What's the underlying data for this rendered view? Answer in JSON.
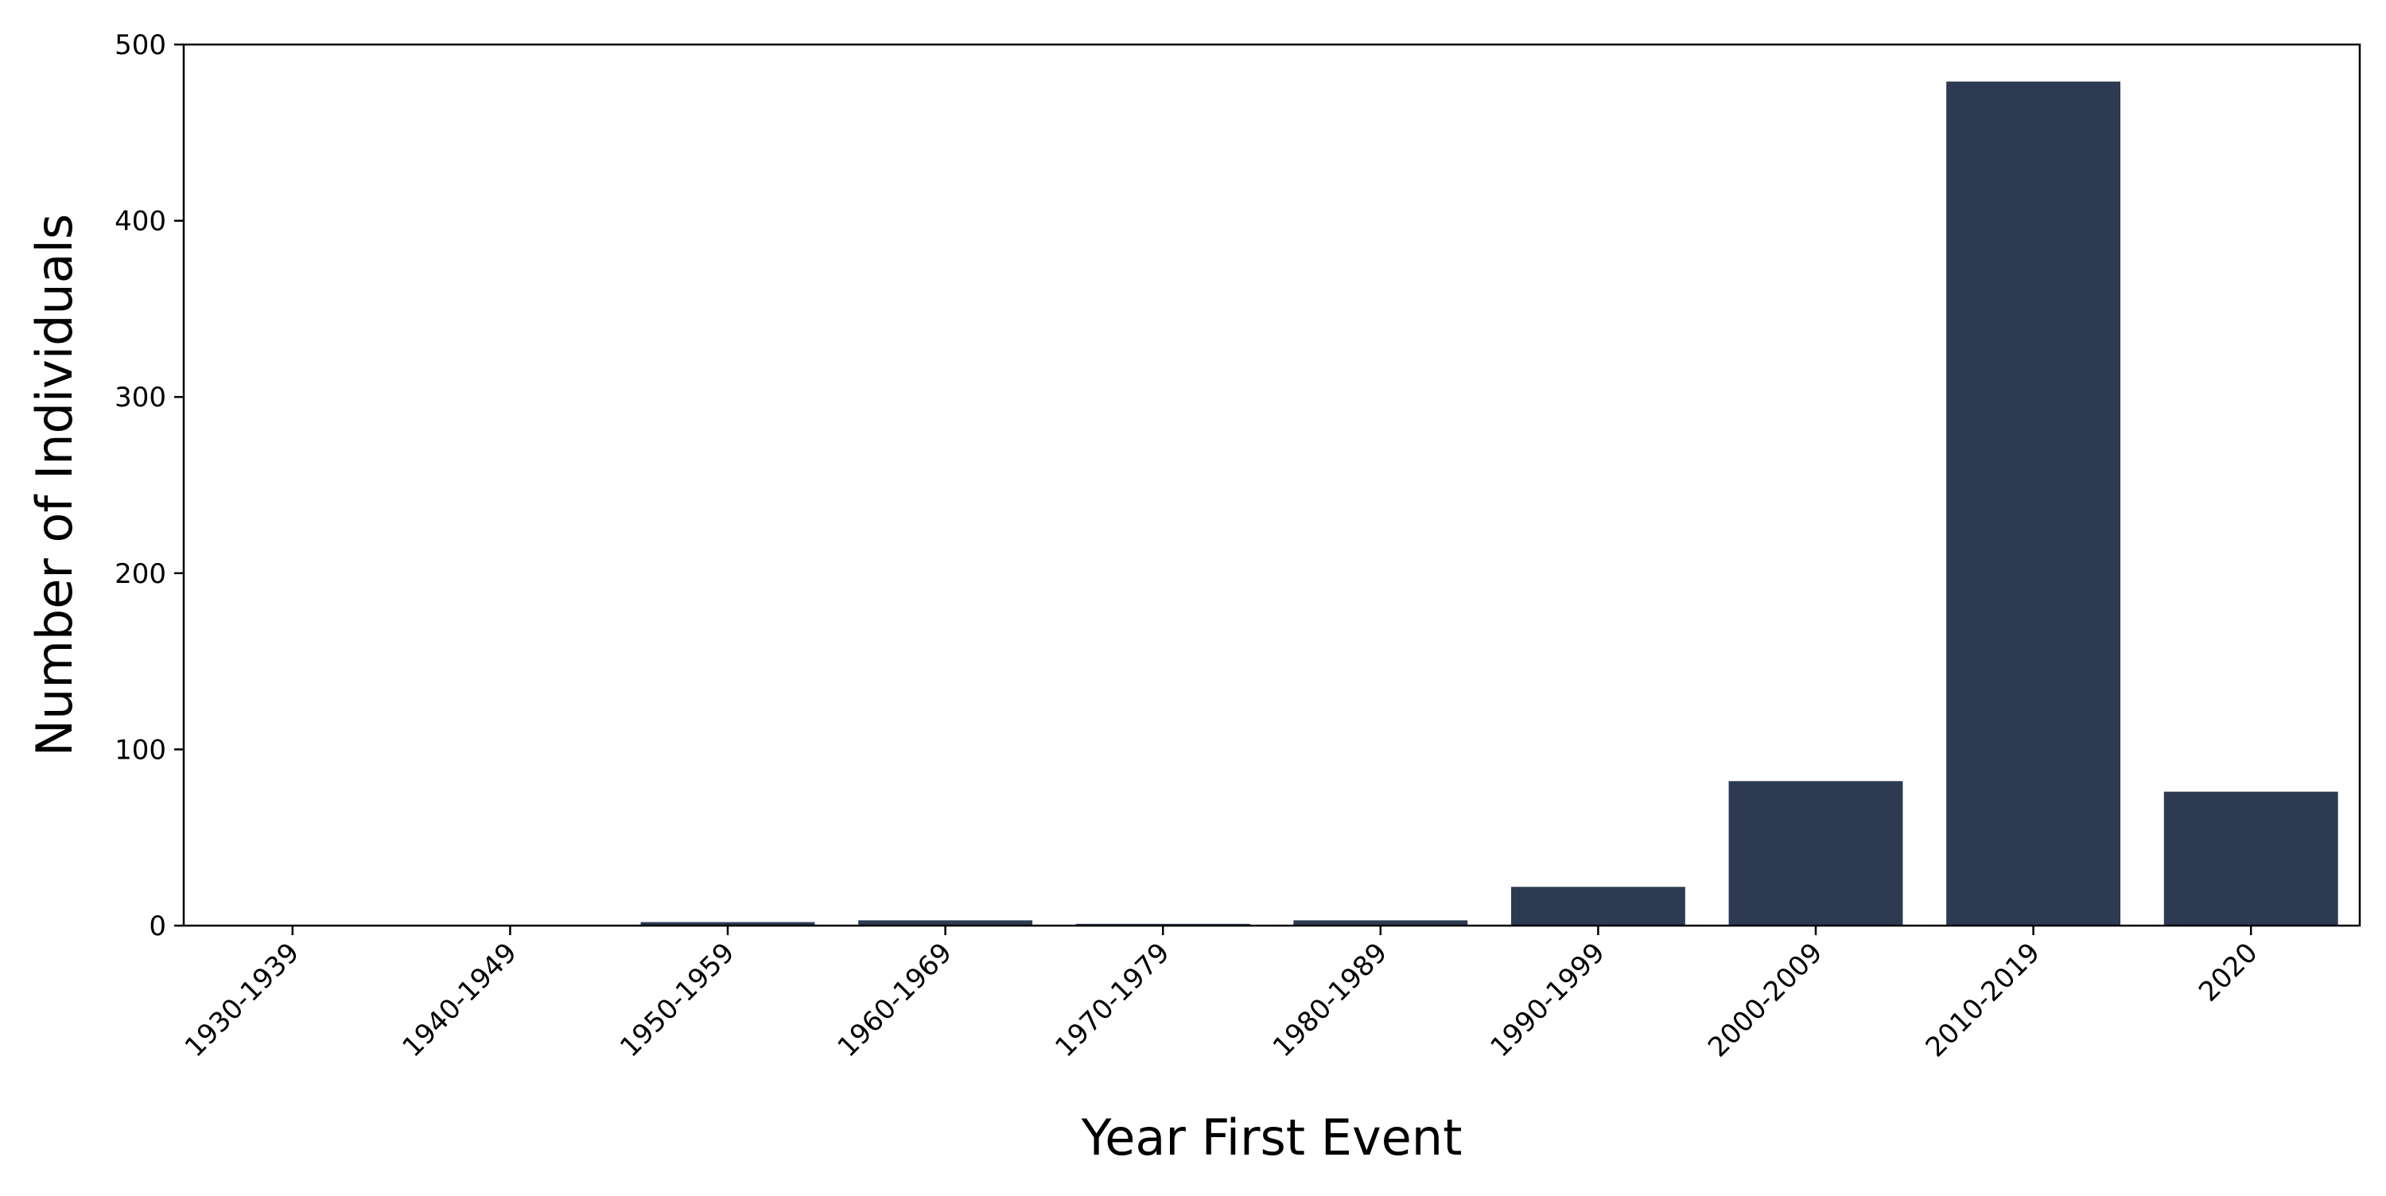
{
  "chart_data": {
    "type": "bar",
    "title": "",
    "xlabel": "Year First Event",
    "ylabel": "Number of Individuals",
    "categories": [
      "1930-1939",
      "1940-1949",
      "1950-1959",
      "1960-1969",
      "1970-1979",
      "1980-1989",
      "1990-1999",
      "2000-2009",
      "2010-2019",
      "2020"
    ],
    "values": [
      0,
      0,
      2,
      3,
      1,
      3,
      22,
      82,
      479,
      76
    ],
    "ylim": [
      0,
      500
    ],
    "yticks": [
      0,
      100,
      200,
      300,
      400,
      500
    ],
    "grid": false,
    "legend": "none",
    "bar_color": "#2d3a52",
    "axis_color": "#000000"
  }
}
